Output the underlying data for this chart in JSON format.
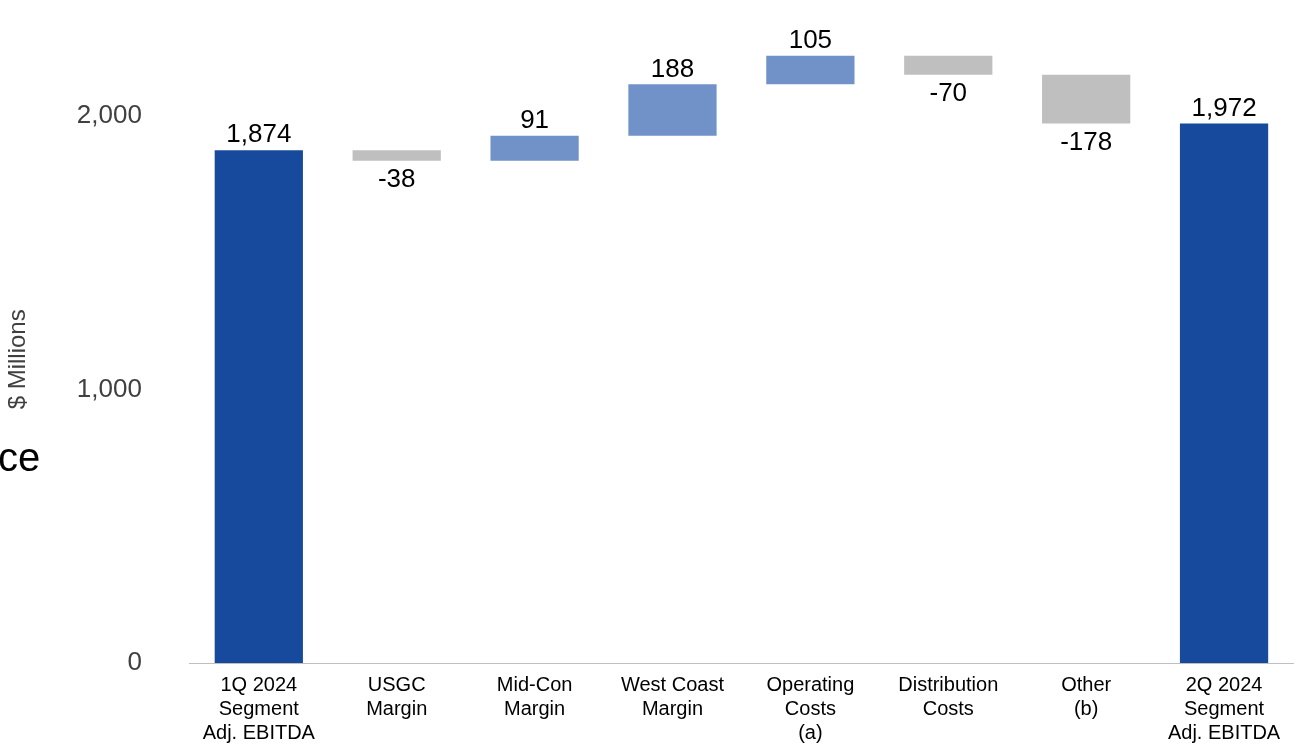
{
  "chart_data": {
    "type": "bar",
    "ylabel": "$ Millions",
    "categories": [
      "1Q 2024\nSegment\nAdj. EBITDA",
      "USGC\nMargin",
      "Mid-Con\nMargin",
      "West Coast\nMargin",
      "Operating\nCosts\n(a)",
      "Distribution\nCosts",
      "Other\n(b)",
      "2Q 2024\nSegment\nAdj. EBITDA"
    ],
    "values": [
      1874,
      -38,
      91,
      188,
      105,
      -70,
      -178,
      1972
    ],
    "base": [
      0,
      1874,
      1836,
      1927,
      2115,
      2220,
      2150,
      0
    ],
    "colors": [
      "#174a9c",
      "#bfbfbf",
      "#7092c8",
      "#7092c8",
      "#7092c8",
      "#bfbfbf",
      "#bfbfbf",
      "#174a9c"
    ],
    "value_labels": [
      "1,874",
      "-38",
      "91",
      "188",
      "105",
      "-70",
      "-178",
      "1,972"
    ],
    "ylim": [
      0,
      2220
    ],
    "yticks": [
      {
        "value": 0,
        "label": "0"
      },
      {
        "value": 1000,
        "label": "1,000"
      },
      {
        "value": 2000,
        "label": "2,000"
      }
    ],
    "annotations": [
      "ce"
    ],
    "grid": false,
    "legend": false
  }
}
